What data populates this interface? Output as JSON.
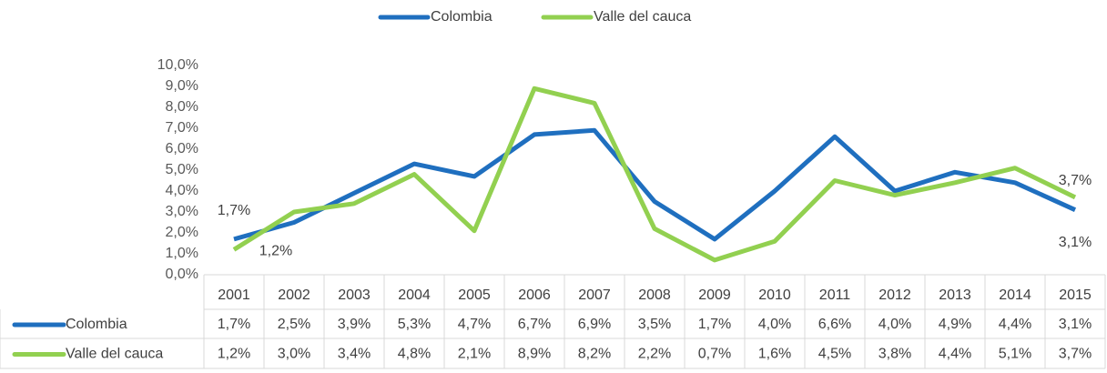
{
  "chart_data": {
    "type": "line",
    "categories": [
      "2001",
      "2002",
      "2003",
      "2004",
      "2005",
      "2006",
      "2007",
      "2008",
      "2009",
      "2010",
      "2011",
      "2012",
      "2013",
      "2014",
      "2015"
    ],
    "series": [
      {
        "name": "Colombia",
        "color": "#1f6fbf",
        "values": [
          1.7,
          2.5,
          3.9,
          5.3,
          4.7,
          6.7,
          6.9,
          3.5,
          1.7,
          4.0,
          6.6,
          4.0,
          4.9,
          4.4,
          3.1
        ],
        "value_labels": [
          "1,7%",
          "2,5%",
          "3,9%",
          "5,3%",
          "4,7%",
          "6,7%",
          "6,9%",
          "3,5%",
          "1,7%",
          "4,0%",
          "6,6%",
          "4,0%",
          "4,9%",
          "4,4%",
          "3,1%"
        ]
      },
      {
        "name": "Valle del cauca",
        "color": "#92d050",
        "values": [
          1.2,
          3.0,
          3.4,
          4.8,
          2.1,
          8.9,
          8.2,
          2.2,
          0.7,
          1.6,
          4.5,
          3.8,
          4.4,
          5.1,
          3.7
        ],
        "value_labels": [
          "1,2%",
          "3,0%",
          "3,4%",
          "4,8%",
          "2,1%",
          "8,9%",
          "8,2%",
          "2,2%",
          "0,7%",
          "1,6%",
          "4,5%",
          "3,8%",
          "4,4%",
          "5,1%",
          "3,7%"
        ]
      }
    ],
    "ylim": [
      0,
      10
    ],
    "yticks": [
      {
        "value": 0,
        "label": "0,0%"
      },
      {
        "value": 1,
        "label": "1,0%"
      },
      {
        "value": 2,
        "label": "2,0%"
      },
      {
        "value": 3,
        "label": "3,0%"
      },
      {
        "value": 4,
        "label": "4,0%"
      },
      {
        "value": 5,
        "label": "5,0%"
      },
      {
        "value": 6,
        "label": "6,0%"
      },
      {
        "value": 7,
        "label": "7,0%"
      },
      {
        "value": 8,
        "label": "8,0%"
      },
      {
        "value": 9,
        "label": "9,0%"
      },
      {
        "value": 10,
        "label": "10,0%"
      }
    ],
    "grid": false,
    "legend": "top"
  }
}
